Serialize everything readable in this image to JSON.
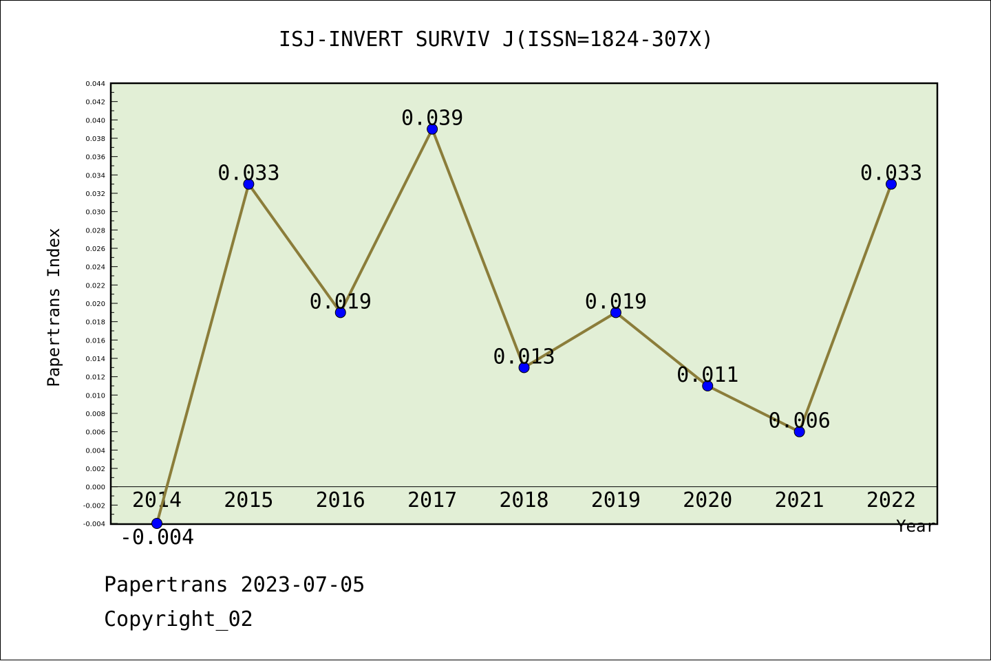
{
  "chart_data": {
    "type": "line",
    "title": "ISJ-INVERT SURVIV J(ISSN=1824-307X)",
    "xlabel": "Year",
    "ylabel": "Papertrans Index",
    "categories": [
      "2014",
      "2015",
      "2016",
      "2017",
      "2018",
      "2019",
      "2020",
      "2021",
      "2022"
    ],
    "values": [
      -0.004,
      0.033,
      0.019,
      0.039,
      0.013,
      0.019,
      0.011,
      0.006,
      0.033
    ],
    "value_labels": [
      "-0.004",
      "0.033",
      "0.019",
      "0.039",
      "0.013",
      "0.019",
      "0.011",
      "0.006",
      "0.033"
    ],
    "ylim": [
      -0.004,
      0.044
    ],
    "ytick_step": 0.002,
    "grid": false,
    "colors": {
      "plot_background": "#e2efd6",
      "line": "#8b7d3a",
      "marker": "#0000ff"
    }
  },
  "footer": {
    "line1": "Papertrans 2023-07-05",
    "line2": "Copyright_02"
  }
}
